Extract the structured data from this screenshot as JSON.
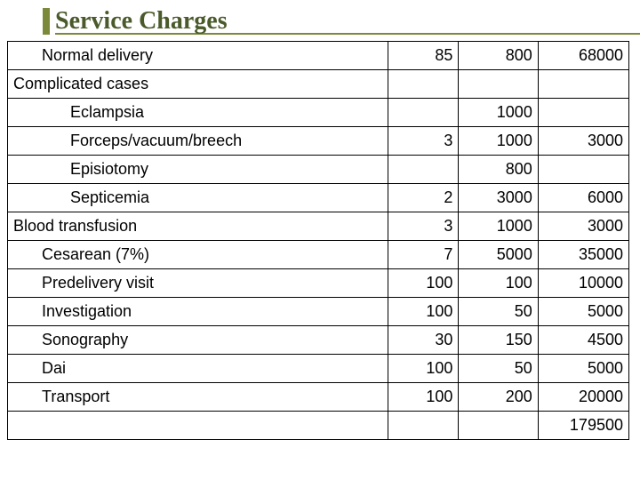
{
  "title": "Service Charges",
  "colors": {
    "accent": "#7a8a3a",
    "title_text": "#4a5a2a",
    "border": "#000000",
    "bg": "#ffffff"
  },
  "fonts": {
    "title_family": "Times New Roman, serif",
    "title_size": 28,
    "body_family": "Arial, sans-serif",
    "body_size": 18
  },
  "rows": [
    {
      "label": "Normal delivery",
      "c1": "85",
      "c2": "800",
      "c3": "68000",
      "indent": 1
    },
    {
      "label": "Complicated cases",
      "c1": "",
      "c2": "",
      "c3": "",
      "indent": 0
    },
    {
      "label": "Eclampsia",
      "c1": "",
      "c2": "1000",
      "c3": "",
      "indent": 2
    },
    {
      "label": "Forceps/vacuum/breech",
      "c1": "3",
      "c2": "1000",
      "c3": "3000",
      "indent": 2
    },
    {
      "label": "Episiotomy",
      "c1": "",
      "c2": "800",
      "c3": "",
      "indent": 2
    },
    {
      "label": "Septicemia",
      "c1": "2",
      "c2": "3000",
      "c3": "6000",
      "indent": 2
    },
    {
      "label": "Blood transfusion",
      "c1": "3",
      "c2": "1000",
      "c3": "3000",
      "indent": 0
    },
    {
      "label": "Cesarean   (7%)",
      "c1": "7",
      "c2": "5000",
      "c3": "35000",
      "indent": 1
    },
    {
      "label": "Predelivery visit",
      "c1": "100",
      "c2": "100",
      "c3": "10000",
      "indent": 1
    },
    {
      "label": "Investigation",
      "c1": "100",
      "c2": "50",
      "c3": "5000",
      "indent": 1
    },
    {
      "label": "Sonography",
      "c1": "30",
      "c2": "150",
      "c3": "4500",
      "indent": 1
    },
    {
      "label": "Dai",
      "c1": "100",
      "c2": "50",
      "c3": "5000",
      "indent": 1
    },
    {
      "label": "Transport",
      "c1": "100",
      "c2": "200",
      "c3": "20000",
      "indent": 1
    },
    {
      "label": "",
      "c1": "",
      "c2": "",
      "c3": "179500",
      "indent": 0
    }
  ]
}
